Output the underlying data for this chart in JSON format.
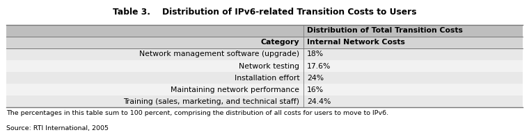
{
  "title": "Table 3.    Distribution of IPv6-related Transition Costs to Users",
  "header_row": [
    "",
    "Distribution of Total Transition Costs"
  ],
  "subheader_row": [
    "Category",
    "Internal Network Costs"
  ],
  "rows": [
    [
      "Network management software (upgrade)",
      "18%"
    ],
    [
      "Network testing",
      "17.6%"
    ],
    [
      "Installation effort",
      "24%"
    ],
    [
      "Maintaining network performance",
      "16%"
    ],
    [
      "Training (sales, marketing, and technical staff)",
      "24.4%"
    ]
  ],
  "footnote": "The percentages in this table sum to 100 percent, comprising the distribution of all costs for users to move to IPv6.",
  "source": "Source: RTI International, 2005",
  "col_split": 0.575,
  "header_bg": "#bebebe",
  "subheader_bg": "#d4d4d4",
  "row_bg_odd": "#e8e8e8",
  "row_bg_even": "#f2f2f2",
  "border_color": "#777777",
  "text_color": "#000000",
  "title_fontsize": 8.8,
  "table_fontsize": 7.8,
  "footnote_fontsize": 6.8
}
